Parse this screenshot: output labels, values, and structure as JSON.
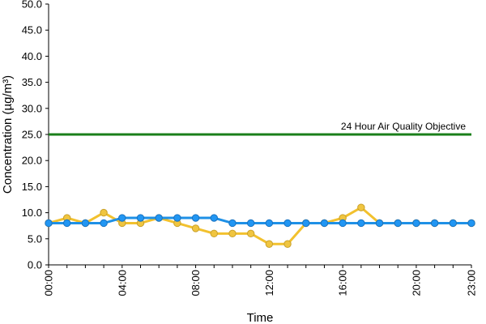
{
  "chart_data": {
    "type": "line",
    "xlabel": "Time",
    "ylabel": "Concentration (µg/m³)",
    "ylim": [
      0,
      50
    ],
    "y_ticks": [
      "0.0",
      "5.0",
      "10.0",
      "15.0",
      "20.0",
      "25.0",
      "30.0",
      "35.0",
      "40.0",
      "45.0",
      "50.0"
    ],
    "x_tick_labels": [
      "00:00",
      "04:00",
      "08:00",
      "12:00",
      "16:00",
      "20:00",
      "23:00"
    ],
    "x_tick_hours": [
      0,
      4,
      8,
      12,
      16,
      20,
      23
    ],
    "x": [
      "00:00",
      "01:00",
      "02:00",
      "03:00",
      "04:00",
      "05:00",
      "06:00",
      "07:00",
      "08:00",
      "09:00",
      "10:00",
      "11:00",
      "12:00",
      "13:00",
      "14:00",
      "15:00",
      "16:00",
      "17:00",
      "18:00",
      "19:00",
      "20:00",
      "21:00",
      "22:00",
      "23:00"
    ],
    "series": [
      {
        "color": "#f2c12e",
        "marker_fill": "#f0c540",
        "marker_stroke": "#c9a12a",
        "values": [
          8,
          9,
          8,
          10,
          8,
          8,
          9,
          8,
          7,
          6,
          6,
          6,
          4,
          4,
          8,
          8,
          9,
          11,
          8,
          8,
          8,
          8,
          8,
          8
        ]
      },
      {
        "color": "#1e90e6",
        "marker_fill": "#2196f3",
        "marker_stroke": "#1a73c0",
        "values": [
          8,
          8,
          8,
          8,
          9,
          9,
          9,
          9,
          9,
          9,
          8,
          8,
          8,
          8,
          8,
          8,
          8,
          8,
          8,
          8,
          8,
          8,
          8,
          8
        ]
      }
    ],
    "reference_line": {
      "label": "24 Hour Air Quality Objective",
      "value": 25,
      "color": "#1a7f1a"
    },
    "grid": false,
    "legend": "none"
  }
}
